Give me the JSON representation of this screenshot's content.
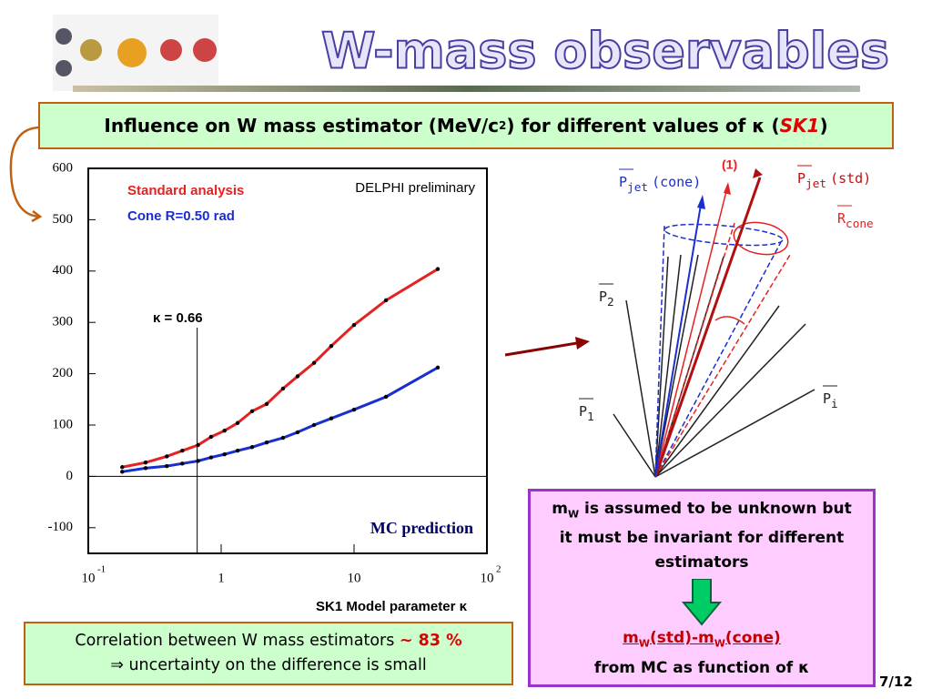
{
  "title": "W-mass observables",
  "header_box": {
    "text": "Influence on W mass estimator (MeV/c",
    "superscript": "2",
    "text_after": ") for different values of κ (",
    "highlight": "SK1",
    "closing": ")"
  },
  "chart_data": {
    "type": "line",
    "annotation": "DELPHI preliminary",
    "kappa_marker": {
      "label": "κ = 0.66",
      "value": 0.66
    },
    "footer_label": "MC prediction",
    "x_label": "SK1 Model parameter κ",
    "log_x": true,
    "xlim": [
      0.1,
      100
    ],
    "xticks": [
      {
        "value": 0.1,
        "label": "10",
        "exponent": "-1"
      },
      1,
      10,
      {
        "value": 100,
        "label": "10",
        "exponent": "2"
      }
    ],
    "ylim": [
      -150,
      600
    ],
    "yticks": [
      -100,
      0,
      100,
      200,
      300,
      400,
      500,
      600
    ],
    "x": [
      0.18,
      0.27,
      0.39,
      0.51,
      0.67,
      0.84,
      1.06,
      1.33,
      1.71,
      2.2,
      2.92,
      3.76,
      5,
      6.74,
      10,
      17.4,
      42.7
    ],
    "series": [
      {
        "name": "Standard analysis",
        "color": "#e52222",
        "values": [
          18,
          27,
          39,
          50,
          61,
          77,
          89,
          104,
          127,
          141,
          171,
          195,
          221,
          254,
          295,
          343,
          404
        ]
      },
      {
        "name": "Cone R=0.50 rad",
        "color": "#1a2fd0",
        "values": [
          9,
          16,
          20,
          25,
          30,
          37,
          43,
          50,
          57,
          66,
          75,
          86,
          100,
          113,
          130,
          155,
          212
        ]
      }
    ]
  },
  "diagram": {
    "label_1": "(1)",
    "p_jet_cone": {
      "main": "P",
      "sub": "jet",
      "extra": "(cone)"
    },
    "p_jet_std": {
      "main": "P",
      "sub": "jet",
      "extra": "(std)"
    },
    "r_cone": {
      "main": "R",
      "sub": "cone"
    },
    "p2": {
      "main": "P",
      "sub": "2"
    },
    "p1": {
      "main": "P",
      "sub": "1"
    },
    "pi": {
      "main": "P",
      "sub": "i"
    }
  },
  "correlation_box": {
    "line1": "Correlation between W mass estimators ",
    "value": "~ 83 %",
    "line2": "⇒ uncertainty on the difference is small"
  },
  "assumption_box": {
    "m": "m",
    "sub": "W",
    "text": " is assumed to be unknown but it must be invariant for different estimators",
    "formula": {
      "m1": "m",
      "s1": "W",
      "t1": "(std)-m",
      "s2": "W",
      "t2": "(cone)"
    },
    "last": "from MC as function of κ"
  },
  "page_number": "7/12"
}
